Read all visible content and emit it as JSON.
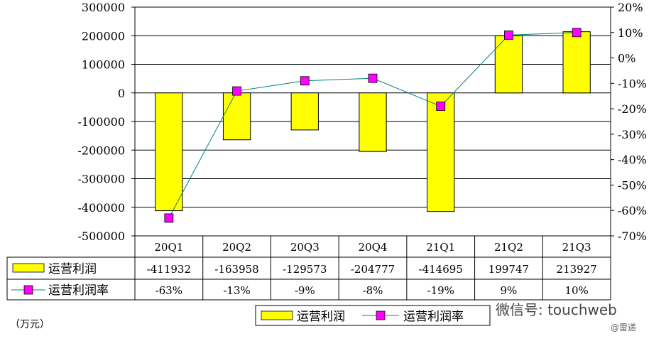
{
  "chart_data": {
    "type": "bar+line",
    "categories": [
      "20Q1",
      "20Q2",
      "20Q3",
      "20Q4",
      "21Q1",
      "21Q2",
      "21Q3"
    ],
    "series": [
      {
        "name": "运营利润",
        "type": "bar",
        "axis": "left",
        "values": [
          -411932,
          -163958,
          -129573,
          -204777,
          -414695,
          199747,
          213927
        ],
        "labels": [
          "-411932",
          "-163958",
          "-129573",
          "-204777",
          "-414695",
          "199747",
          "213927"
        ],
        "color": "#FFFF00"
      },
      {
        "name": "运营利润率",
        "type": "line",
        "axis": "right",
        "values": [
          -63,
          -13,
          -9,
          -8,
          -19,
          9,
          10
        ],
        "labels": [
          "-63%",
          "-13%",
          "-9%",
          "-8%",
          "-19%",
          "9%",
          "10%"
        ],
        "color": "#FF00FF",
        "line_color": "#008080"
      }
    ],
    "y_left": {
      "ylim": [
        -500000,
        300000
      ],
      "ticks": [
        300000,
        200000,
        100000,
        0,
        -100000,
        -200000,
        -300000,
        -400000,
        -500000
      ],
      "tick_labels": [
        "300000",
        "200000",
        "100000",
        "0",
        "-100000",
        "-200000",
        "-300000",
        "-400000",
        "-500000"
      ]
    },
    "y_right": {
      "ylim": [
        -70,
        20
      ],
      "ticks": [
        20,
        10,
        0,
        -10,
        -20,
        -30,
        -40,
        -50,
        -60,
        -70
      ],
      "tick_labels": [
        "20%",
        "10%",
        "0%",
        "-10%",
        "-20%",
        "-30%",
        "-40%",
        "-50%",
        "-60%",
        "-70%"
      ]
    },
    "grid": true,
    "legend": {
      "placement": "bottom",
      "entries": [
        "运营利润",
        "运营利润率"
      ]
    },
    "unit_label": "（万元）"
  },
  "watermark": {
    "text": "微信号: touchweb",
    "sub": "@雷递"
  }
}
